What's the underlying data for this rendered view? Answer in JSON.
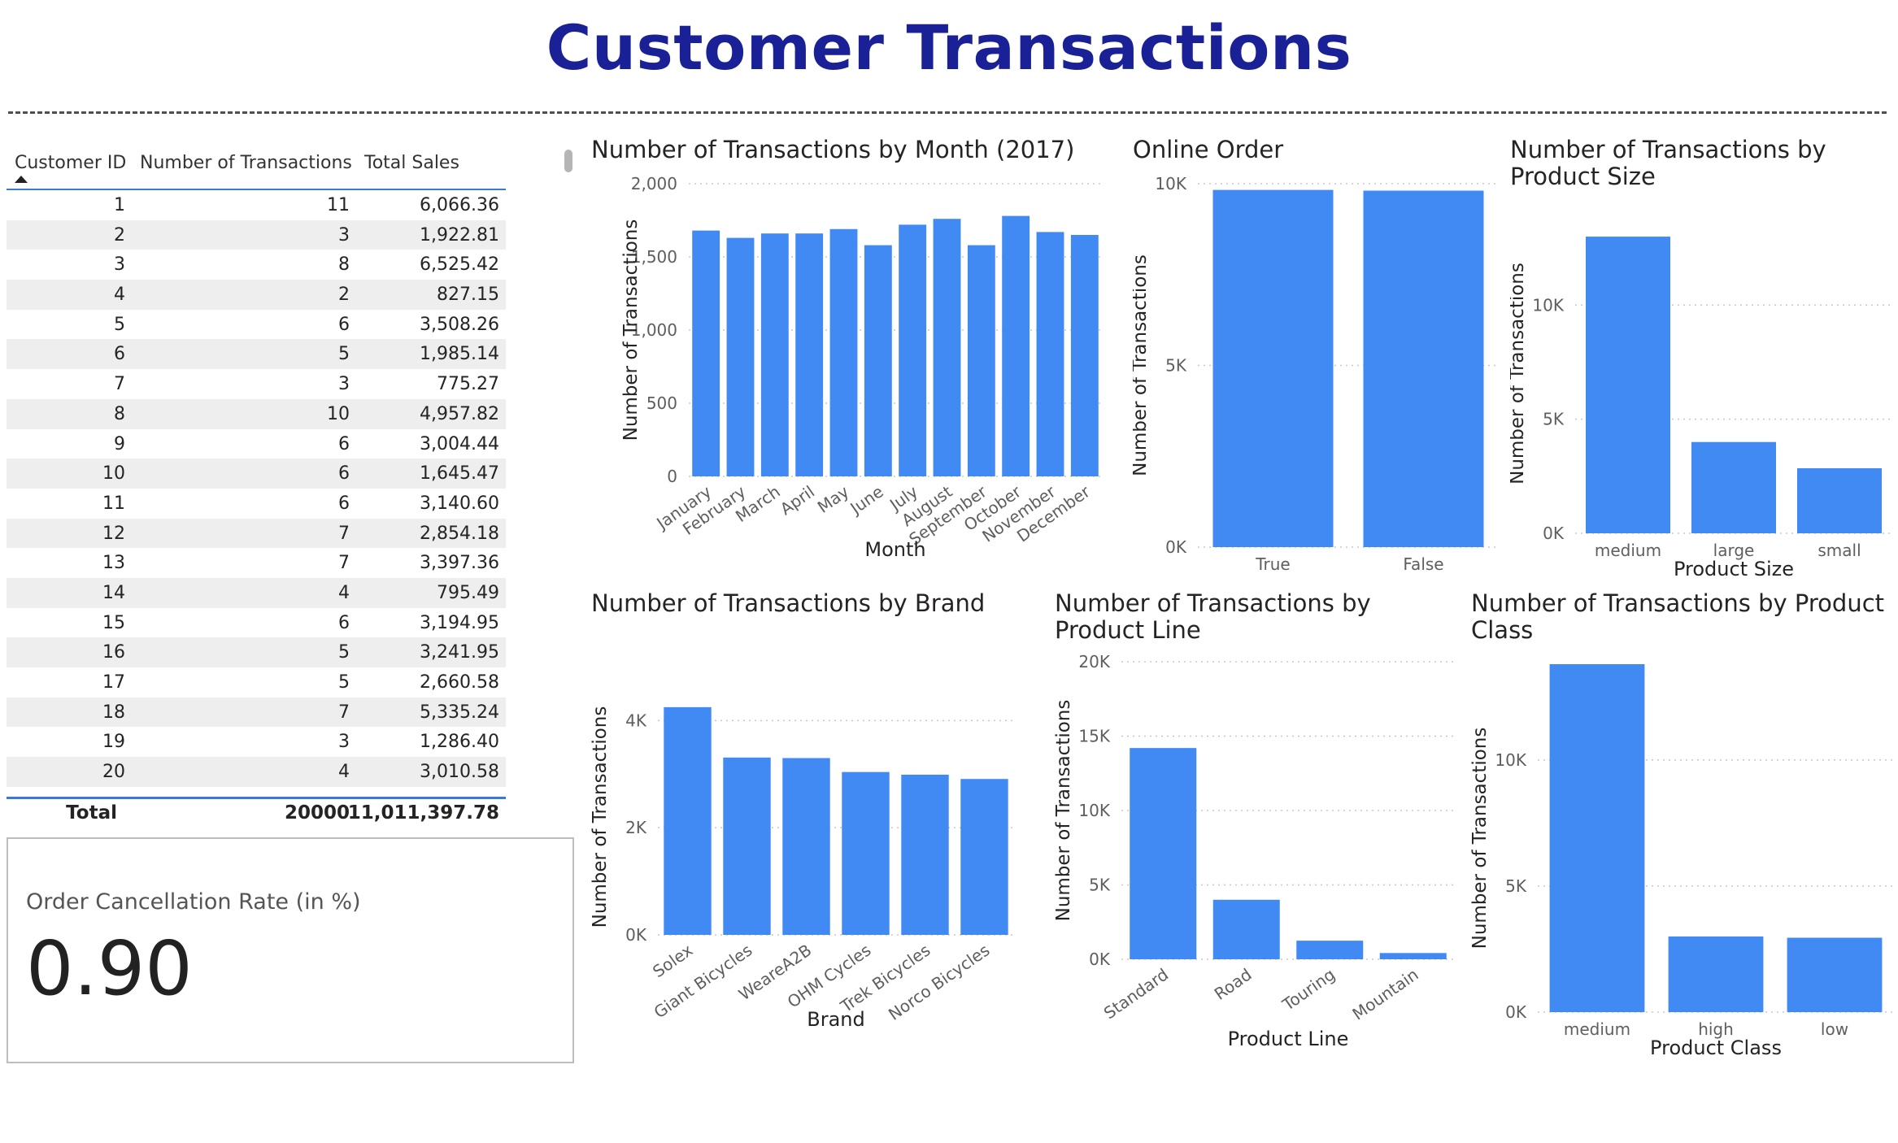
{
  "page": {
    "title": "Customer Transactions"
  },
  "table": {
    "headers": [
      "Customer ID",
      "Number of Transactions",
      "Total Sales"
    ],
    "rows": [
      [
        "1",
        "11",
        "6,066.36"
      ],
      [
        "2",
        "3",
        "1,922.81"
      ],
      [
        "3",
        "8",
        "6,525.42"
      ],
      [
        "4",
        "2",
        "827.15"
      ],
      [
        "5",
        "6",
        "3,508.26"
      ],
      [
        "6",
        "5",
        "1,985.14"
      ],
      [
        "7",
        "3",
        "775.27"
      ],
      [
        "8",
        "10",
        "4,957.82"
      ],
      [
        "9",
        "6",
        "3,004.44"
      ],
      [
        "10",
        "6",
        "1,645.47"
      ],
      [
        "11",
        "6",
        "3,140.60"
      ],
      [
        "12",
        "7",
        "2,854.18"
      ],
      [
        "13",
        "7",
        "3,397.36"
      ],
      [
        "14",
        "4",
        "795.49"
      ],
      [
        "15",
        "6",
        "3,194.95"
      ],
      [
        "16",
        "5",
        "3,241.95"
      ],
      [
        "17",
        "5",
        "2,660.58"
      ],
      [
        "18",
        "7",
        "5,335.24"
      ],
      [
        "19",
        "3",
        "1,286.40"
      ],
      [
        "20",
        "4",
        "3,010.58"
      ]
    ],
    "total": {
      "label": "Total",
      "transactions": "20000",
      "sales": "11,011,397.78"
    }
  },
  "card": {
    "label": "Order Cancellation Rate (in %)",
    "value": "0.90"
  },
  "colors": {
    "bar": "#4189f3",
    "title": "#1a2196",
    "accent": "#3a7ad6"
  },
  "chart_data": [
    {
      "id": "month",
      "type": "bar",
      "title": "Number of Transactions by Month (2017)",
      "xlabel": "Month",
      "ylabel": "Number of Transactions",
      "categories": [
        "January",
        "February",
        "March",
        "April",
        "May",
        "June",
        "July",
        "August",
        "September",
        "October",
        "November",
        "December"
      ],
      "values": [
        1680,
        1630,
        1660,
        1660,
        1690,
        1580,
        1720,
        1760,
        1580,
        1780,
        1670,
        1650
      ],
      "ylim": [
        0,
        2000
      ],
      "yticks": [
        "0",
        "500",
        "1,000",
        "1,500",
        "2,000"
      ],
      "ytick_values": [
        0,
        500,
        1000,
        1500,
        2000
      ],
      "rotate_labels": true,
      "grid": true
    },
    {
      "id": "online",
      "type": "bar",
      "title": "Online Order",
      "xlabel": "",
      "ylabel": "Number of Transactions",
      "categories": [
        "True",
        "False"
      ],
      "values": [
        9830,
        9810
      ],
      "ylim": [
        0,
        10000
      ],
      "yticks": [
        "0K",
        "5K",
        "10K"
      ],
      "ytick_values": [
        0,
        5000,
        10000
      ],
      "rotate_labels": false,
      "grid": true
    },
    {
      "id": "size",
      "type": "bar",
      "title": "Number of Transactions by Product Size",
      "xlabel": "Product Size",
      "ylabel": "Number of Transactions",
      "categories": [
        "medium",
        "large",
        "small"
      ],
      "values": [
        13000,
        4000,
        2850
      ],
      "ylim": [
        0,
        14000
      ],
      "yticks": [
        "0K",
        "5K",
        "10K"
      ],
      "ytick_values": [
        0,
        5000,
        10000
      ],
      "rotate_labels": false,
      "grid": true
    },
    {
      "id": "brand",
      "type": "bar",
      "title": "Number of Transactions by Brand",
      "xlabel": "Brand",
      "ylabel": "Number of Transactions",
      "categories": [
        "Solex",
        "Giant Bicycles",
        "WeareA2B",
        "OHM Cycles",
        "Trek Bicycles",
        "Norco Bicycles"
      ],
      "values": [
        4250,
        3310,
        3300,
        3040,
        2990,
        2910
      ],
      "ylim": [
        0,
        4400
      ],
      "yticks": [
        "0K",
        "2K",
        "4K"
      ],
      "ytick_values": [
        0,
        2000,
        4000
      ],
      "rotate_labels": true,
      "grid": true
    },
    {
      "id": "line",
      "type": "bar",
      "title": "Number of Transactions by Product Line",
      "xlabel": "Product Line",
      "ylabel": "Number of Transactions",
      "categories": [
        "Standard",
        "Road",
        "Touring",
        "Mountain"
      ],
      "values": [
        14200,
        4000,
        1250,
        420
      ],
      "ylim": [
        0,
        20000
      ],
      "yticks": [
        "0K",
        "5K",
        "10K",
        "15K",
        "20K"
      ],
      "ytick_values": [
        0,
        5000,
        10000,
        15000,
        20000
      ],
      "rotate_labels": true,
      "grid": true
    },
    {
      "id": "class",
      "type": "bar",
      "title": "Number of Transactions by Product Class",
      "xlabel": "Product Class",
      "ylabel": "Number of Transactions",
      "categories": [
        "medium",
        "high",
        "low"
      ],
      "values": [
        13800,
        3000,
        2950
      ],
      "ylim": [
        0,
        13800
      ],
      "yticks": [
        "0K",
        "5K",
        "10K"
      ],
      "ytick_values": [
        0,
        5000,
        10000
      ],
      "rotate_labels": false,
      "grid": true
    }
  ]
}
